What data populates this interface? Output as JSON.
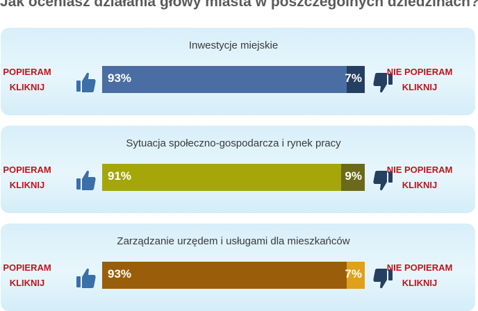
{
  "page_title": "Jak oceniasz działania głowy miasta w poszczególnych dziedzinach?",
  "panels": [
    {
      "title": "Inwestycje miejskie",
      "yes_pct": 93,
      "no_pct": 7,
      "yes_label": "93%",
      "no_label": "7%",
      "yes_color": "#4a6ea3",
      "no_color": "#253f61"
    },
    {
      "title": "Sytuacja społeczno-gospodarcza i rynek pracy",
      "yes_pct": 91,
      "no_pct": 9,
      "yes_label": "91%",
      "no_label": "9%",
      "yes_color": "#a5a60a",
      "no_color": "#6a6a1a"
    },
    {
      "title": "Zarządzanie urzędem i usługami dla mieszkańców",
      "yes_pct": 93,
      "no_pct": 7,
      "yes_label": "93%",
      "no_label": "7%",
      "yes_color": "#9a5e0b",
      "no_color": "#e0a01b"
    }
  ],
  "vote": {
    "support_line1": "POPIERAM",
    "support_line2": "KLIKNIJ",
    "oppose_line1": "NIE POPIERAM",
    "oppose_line2": "KLIKNIJ"
  },
  "icons": {
    "support": "thumbs-up-icon",
    "oppose": "thumbs-down-icon"
  },
  "colors": {
    "vote_text": "#c0141b",
    "thumb": "#3a6fa8",
    "title_text": "#5a5a5a"
  }
}
